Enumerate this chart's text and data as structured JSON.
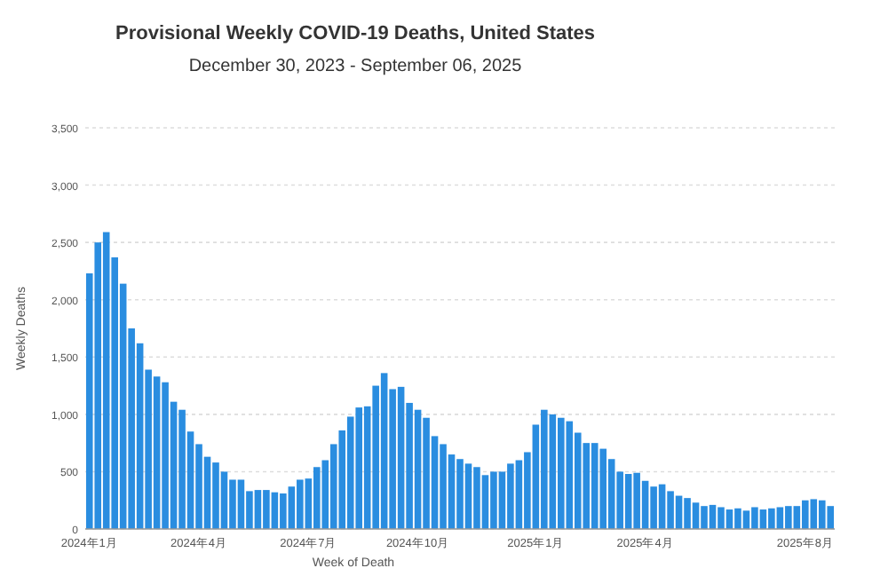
{
  "chart_data": {
    "type": "bar",
    "title": "Provisional Weekly COVID-19 Deaths, United States",
    "subtitle": "December 30, 2023 - September 06, 2025",
    "xlabel": "Week of Death",
    "ylabel": "Weekly Deaths",
    "color": "#2a8de0",
    "categories": [
      "2024年1月",
      null,
      null,
      null,
      null,
      null,
      null,
      null,
      null,
      null,
      null,
      null,
      null,
      "2024年4月",
      null,
      null,
      null,
      null,
      null,
      null,
      null,
      null,
      null,
      null,
      null,
      null,
      "2024年7月",
      null,
      null,
      null,
      null,
      null,
      null,
      null,
      null,
      null,
      null,
      null,
      null,
      "2024年10月",
      null,
      null,
      null,
      null,
      null,
      null,
      null,
      null,
      null,
      null,
      null,
      null,
      null,
      "2025年1月",
      null,
      null,
      null,
      null,
      null,
      null,
      null,
      null,
      null,
      null,
      null,
      null,
      "2025年4月",
      null,
      null,
      null,
      null,
      null,
      null,
      null,
      null,
      null,
      null,
      null,
      null,
      null,
      null,
      null,
      null,
      null,
      null,
      "2025年8月",
      null,
      null,
      null
    ],
    "values": [
      2230,
      2500,
      2590,
      2370,
      2140,
      1750,
      1620,
      1390,
      1330,
      1280,
      1110,
      1040,
      850,
      740,
      630,
      580,
      500,
      430,
      430,
      330,
      340,
      340,
      320,
      310,
      370,
      430,
      440,
      540,
      600,
      740,
      860,
      980,
      1060,
      1070,
      1250,
      1360,
      1220,
      1240,
      1100,
      1040,
      970,
      810,
      740,
      650,
      610,
      570,
      540,
      470,
      500,
      500,
      570,
      600,
      670,
      910,
      1040,
      1000,
      970,
      940,
      840,
      750,
      750,
      700,
      610,
      500,
      480,
      490,
      420,
      370,
      390,
      330,
      290,
      270,
      230,
      200,
      210,
      190,
      170,
      180,
      160,
      190,
      170,
      180,
      190,
      200,
      200,
      250,
      260,
      250,
      200
    ],
    "ylim": [
      0,
      3500
    ],
    "yticks": [
      {
        "value": 0,
        "label": "0"
      },
      {
        "value": 500,
        "label": "500"
      },
      {
        "value": 1000,
        "label": "1,000"
      },
      {
        "value": 1500,
        "label": "1,500"
      },
      {
        "value": 2000,
        "label": "2,000"
      },
      {
        "value": 2500,
        "label": "2,500"
      },
      {
        "value": 3000,
        "label": "3,000"
      },
      {
        "value": 3500,
        "label": "3,500"
      }
    ],
    "grid": "y"
  }
}
